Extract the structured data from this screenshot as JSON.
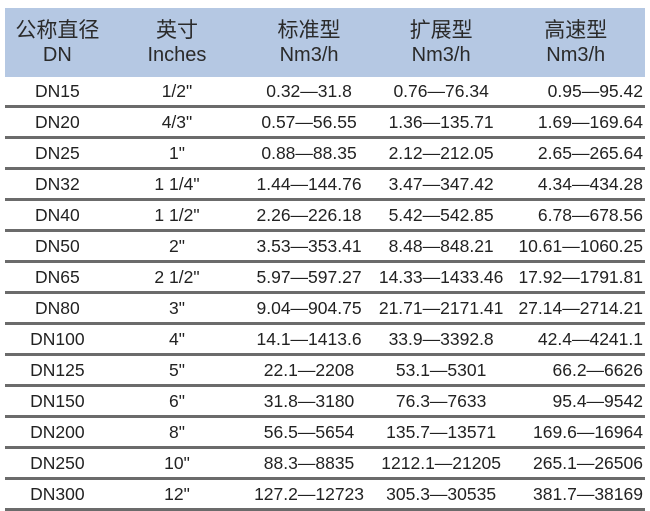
{
  "header": [
    {
      "zh": "公称直径",
      "en": "DN"
    },
    {
      "zh": "英寸",
      "en": "Inches"
    },
    {
      "zh": "标准型",
      "en": "Nm3/h"
    },
    {
      "zh": "扩展型",
      "en": "Nm3/h"
    },
    {
      "zh": "高速型",
      "en": "Nm3/h"
    }
  ],
  "rows": [
    [
      "DN15",
      "1/2\"",
      "0.32—31.8",
      "0.76—76.34",
      "0.95—95.42"
    ],
    [
      "DN20",
      "4/3\"",
      "0.57—56.55",
      "1.36—135.71",
      "1.69—169.64"
    ],
    [
      "DN25",
      "1\"",
      "0.88—88.35",
      "2.12—212.05",
      "2.65—265.64"
    ],
    [
      "DN32",
      "1 1/4\"",
      "1.44—144.76",
      "3.47—347.42",
      "4.34—434.28"
    ],
    [
      "DN40",
      "1 1/2\"",
      "2.26—226.18",
      "5.42—542.85",
      "6.78—678.56"
    ],
    [
      "DN50",
      "2\"",
      "3.53—353.41",
      "8.48—848.21",
      "10.61—1060.25"
    ],
    [
      "DN65",
      "2 1/2\"",
      "5.97—597.27",
      "14.33—1433.46",
      "17.92—1791.81"
    ],
    [
      "DN80",
      "3\"",
      "9.04—904.75",
      "21.71—2171.41",
      "27.14—2714.21"
    ],
    [
      "DN100",
      "4\"",
      "14.1—1413.6",
      "33.9—3392.8",
      "42.4—4241.1"
    ],
    [
      "DN125",
      "5\"",
      "22.1—2208",
      "53.1—5301",
      "66.2—6626"
    ],
    [
      "DN150",
      "6\"",
      "31.8—3180",
      "76.3—7633",
      "95.4—9542"
    ],
    [
      "DN200",
      "8\"",
      "56.5—5654",
      "135.7—13571",
      "169.6—16964"
    ],
    [
      "DN250",
      "10\"",
      "88.3—8835",
      "1212.1—21205",
      "265.1—26506"
    ],
    [
      "DN300",
      "12\"",
      "127.2—12723",
      "305.3—30535",
      "381.7—38169"
    ]
  ]
}
